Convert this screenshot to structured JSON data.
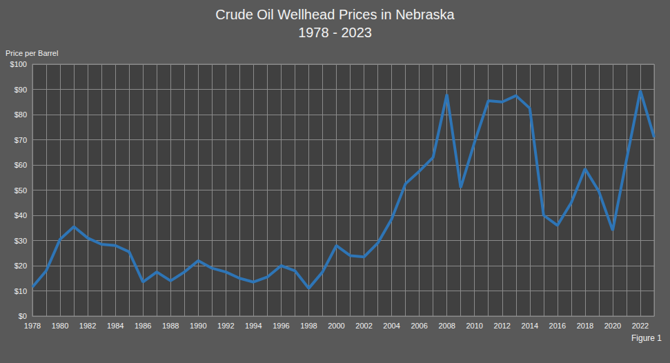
{
  "chart_data": {
    "type": "line",
    "title": "Crude Oil Wellhead Prices in Nebraska",
    "subtitle": "1978 - 2023",
    "y_label": "Price per Barrel",
    "annotations": [
      "Figure 1"
    ],
    "categories": [
      "1978",
      null,
      "1980",
      null,
      "1982",
      null,
      "1984",
      null,
      "1986",
      null,
      "1988",
      null,
      "1990",
      null,
      "1992",
      null,
      "1994",
      null,
      "1996",
      null,
      "1998",
      null,
      "2000",
      null,
      "2002",
      null,
      "2004",
      null,
      "2006",
      null,
      "2008",
      null,
      "2010",
      null,
      "2012",
      null,
      "2014",
      null,
      "2016",
      null,
      "2018",
      null,
      "2020",
      null,
      "2022",
      null
    ],
    "values": [
      11.5,
      18,
      30.5,
      35.5,
      31,
      28.5,
      28,
      25.5,
      13.5,
      17.5,
      14,
      17.5,
      22,
      19,
      17.5,
      15,
      13.5,
      15.5,
      20,
      18,
      11,
      17.5,
      28,
      24,
      23.5,
      29,
      38.5,
      52.5,
      57.5,
      63,
      88,
      51,
      69,
      85.5,
      85,
      87.5,
      82.5,
      40,
      36,
      45,
      58.5,
      49.5,
      34,
      62,
      89.5,
      71
    ],
    "color": "#2e75b6",
    "ylim": [
      0,
      100
    ],
    "yticks": [
      {
        "value": 0,
        "label": "$0"
      },
      {
        "value": 10,
        "label": "$10"
      },
      {
        "value": 20,
        "label": "$20"
      },
      {
        "value": 30,
        "label": "$30"
      },
      {
        "value": 40,
        "label": "$40"
      },
      {
        "value": 50,
        "label": "$50"
      },
      {
        "value": 60,
        "label": "$60"
      },
      {
        "value": 70,
        "label": "$70"
      },
      {
        "value": 80,
        "label": "$80"
      },
      {
        "value": 90,
        "label": "$90"
      },
      {
        "value": 100,
        "label": "$100"
      }
    ],
    "grid": true
  }
}
